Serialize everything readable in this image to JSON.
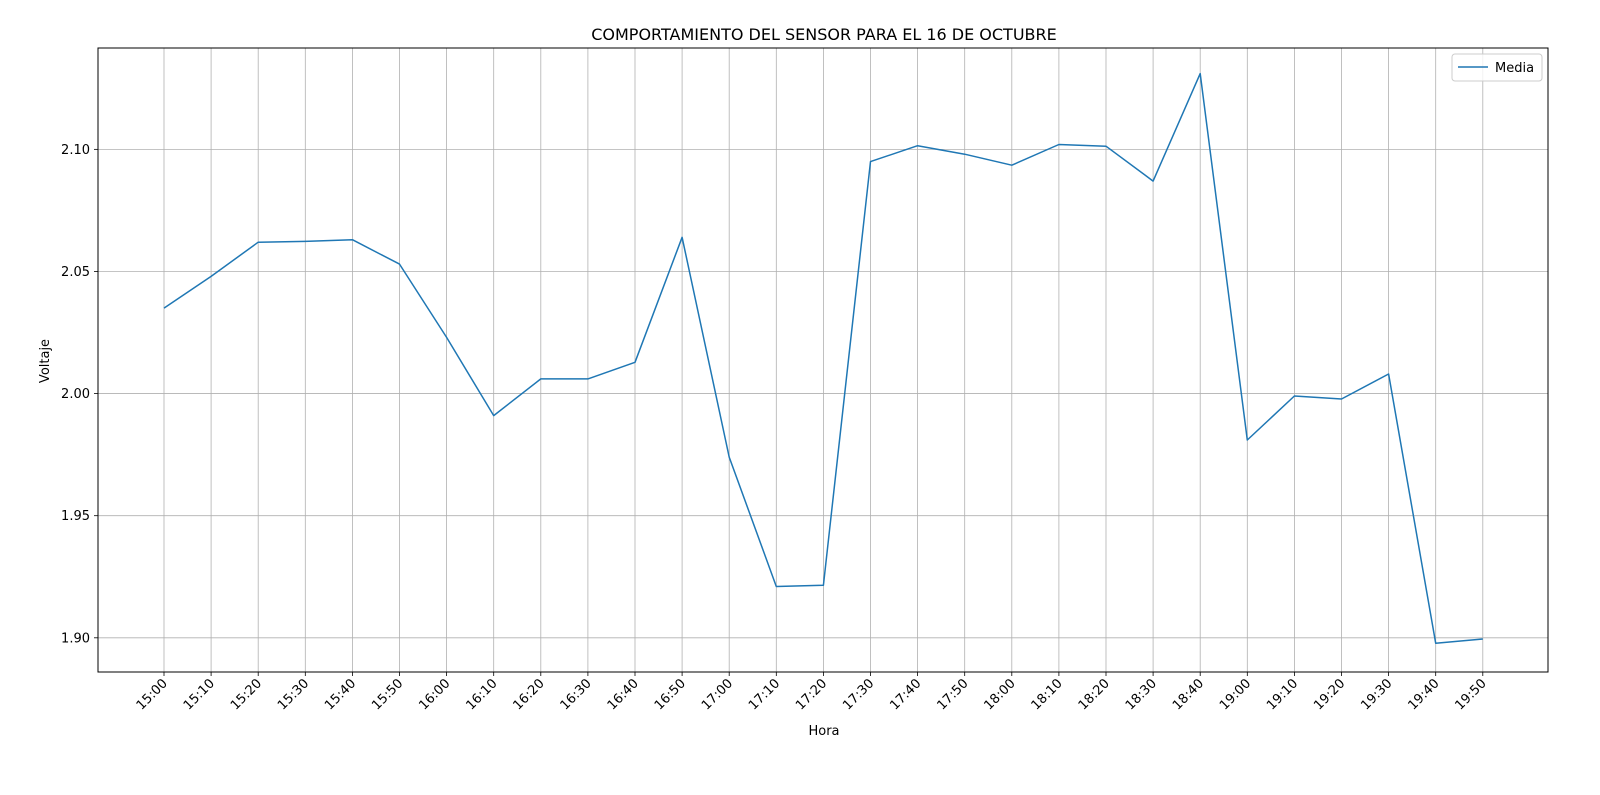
{
  "chart_data": {
    "type": "line",
    "title": "COMPORTAMIENTO DEL SENSOR PARA EL 16 DE OCTUBRE",
    "xlabel": "Hora",
    "ylabel": "Voltaje",
    "categories": [
      "15:00",
      "15:10",
      "15:20",
      "15:30",
      "15:40",
      "15:50",
      "16:00",
      "16:10",
      "16:20",
      "16:30",
      "16:40",
      "16:50",
      "17:00",
      "17:10",
      "17:20",
      "17:30",
      "17:40",
      "17:50",
      "18:00",
      "18:10",
      "18:20",
      "18:30",
      "18:40",
      "19:00",
      "19:10",
      "19:20",
      "19:30",
      "19:40",
      "19:50"
    ],
    "series": [
      {
        "name": "Media",
        "color": "#1f77b4",
        "values": [
          2.035,
          2.048,
          2.062,
          2.0623,
          2.063,
          2.053,
          2.023,
          1.991,
          2.006,
          2.006,
          2.0128,
          2.064,
          1.974,
          1.921,
          1.9215,
          2.095,
          2.1015,
          2.098,
          2.0935,
          2.102,
          2.1013,
          2.087,
          2.131,
          1.981,
          1.999,
          1.9978,
          2.008,
          1.8978,
          1.8995
        ]
      }
    ],
    "yticks": [
      "1.90",
      "1.95",
      "2.00",
      "2.05",
      "2.10"
    ],
    "ylim": [
      1.886,
      2.1415
    ],
    "grid": true,
    "legend_position": "top-right"
  }
}
